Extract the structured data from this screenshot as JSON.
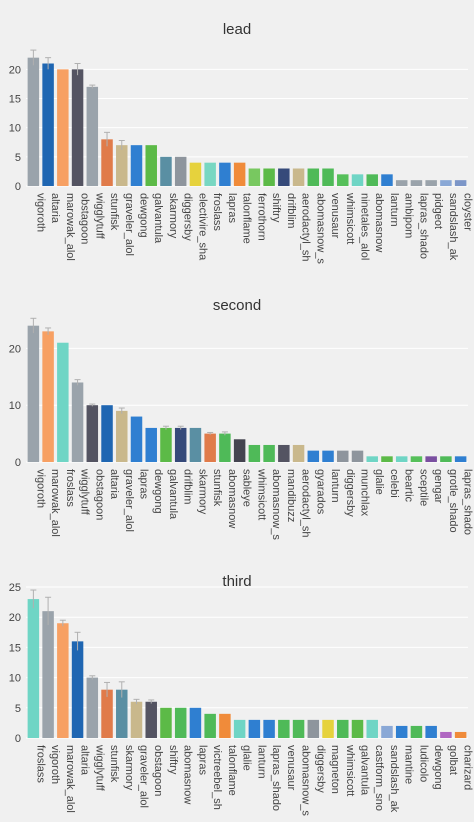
{
  "colors": {
    "background": "#f0f0f0",
    "gridline": "#ffffff",
    "errorbar": "#b0b0b0"
  },
  "chart_data": [
    {
      "type": "bar",
      "title": "lead",
      "ylim": [
        0,
        24
      ],
      "yticks": [
        0,
        5,
        10,
        15,
        20
      ],
      "grid": true,
      "categories": [
        "vigoroth",
        "altaria",
        "marowak_alol",
        "obstagoon",
        "wigglytuff",
        "stunfisk",
        "graveler_alol",
        "dewgong",
        "galvantula",
        "skarmory",
        "diggersby",
        "electivire_sha",
        "froslass",
        "lapras",
        "talonflame",
        "ferrothorn",
        "shiftry",
        "drifblim",
        "aerodactyl_sh",
        "abomasnow_s",
        "venusaur",
        "whimsicott",
        "ninetales_alol",
        "abomasnow",
        "lanturn",
        "ambipom",
        "lapras_shado",
        "pidgeot",
        "sandslash_ak",
        "cloyster"
      ],
      "values": [
        22,
        21,
        20,
        20,
        17,
        8,
        7,
        7,
        7,
        5,
        5,
        4,
        4,
        4,
        4,
        3,
        3,
        3,
        3,
        3,
        3,
        2,
        2,
        2,
        2,
        1,
        1,
        1,
        1,
        1
      ],
      "errors": [
        1.3,
        1.0,
        0,
        1.0,
        0.3,
        1.2,
        0.8,
        0,
        0,
        0,
        0,
        0,
        0,
        0,
        0,
        0,
        0,
        0,
        0,
        0,
        0,
        0,
        0,
        0,
        0,
        0,
        0,
        0,
        0,
        0
      ],
      "colors": [
        "#9aa3ab",
        "#1f66b2",
        "#f7a063",
        "#545462",
        "#9aa3ab",
        "#e07b4a",
        "#c9b88c",
        "#2f7fd1",
        "#5cba47",
        "#5a8fa3",
        "#8e959d",
        "#e6d23d",
        "#78d7c2",
        "#2f7fd1",
        "#f08b3a",
        "#78c860",
        "#5cba47",
        "#364a7a",
        "#c9b88c",
        "#4fba58",
        "#4fba58",
        "#56c05a",
        "#6fd5c5",
        "#4fba58",
        "#2f7fd1",
        "#9aa3ab",
        "#9aa3ab",
        "#9aa3ab",
        "#8aa8d6",
        "#7c96c8"
      ]
    },
    {
      "type": "bar",
      "title": "second",
      "ylim": [
        0,
        25
      ],
      "yticks": [
        0,
        10,
        20
      ],
      "grid": true,
      "categories": [
        "vigoroth",
        "marowak_alol",
        "froslass",
        "wigglytuff",
        "obstagoon",
        "altaria",
        "graveler_alol",
        "lapras",
        "dewgong",
        "galvantula",
        "drifblim",
        "skarmory",
        "stunfisk",
        "abomasnow",
        "sableye",
        "whimsicott",
        "abomasnow_s",
        "mandibuzz",
        "aerodactyl_sh",
        "gyarados",
        "lanturn",
        "diggersby",
        "munchlax",
        "glalie",
        "celebi",
        "beartic",
        "sceptile",
        "gengar",
        "grotle_shado",
        "lapras_shado"
      ],
      "values": [
        24,
        23,
        21,
        14,
        10,
        10,
        9,
        8,
        6,
        6,
        6,
        6,
        5,
        5,
        4,
        3,
        3,
        3,
        3,
        2,
        2,
        2,
        2,
        1,
        1,
        1,
        1,
        1,
        1,
        1
      ],
      "errors": [
        1.3,
        0.6,
        0,
        0.5,
        0.2,
        0,
        0.5,
        0,
        0,
        0.3,
        0.3,
        0,
        0.2,
        0.3,
        0,
        0,
        0,
        0,
        0,
        0,
        0,
        0,
        0,
        0,
        0,
        0,
        0,
        0,
        0,
        0
      ],
      "colors": [
        "#9aa3ab",
        "#f7a063",
        "#6fd5c5",
        "#9aa3ab",
        "#545462",
        "#1f66b2",
        "#c9b88c",
        "#2f7fd1",
        "#2f7fd1",
        "#5cba47",
        "#364a7a",
        "#5a8fa3",
        "#e07b4a",
        "#4fba58",
        "#444450",
        "#4fba58",
        "#4fba58",
        "#545462",
        "#c9b88c",
        "#2f7fd1",
        "#2f7fd1",
        "#8e959d",
        "#8e959d",
        "#6fd5c5",
        "#5cba47",
        "#6fd5c5",
        "#56c05a",
        "#7a4fa0",
        "#4fba58",
        "#2f7fd1"
      ]
    },
    {
      "type": "bar",
      "title": "third",
      "ylim": [
        0,
        25
      ],
      "yticks": [
        0,
        5,
        10,
        15,
        20,
        25
      ],
      "grid": true,
      "categories": [
        "froslass",
        "vigoroth",
        "marowak_alol",
        "altaria",
        "wigglytuff",
        "stunfisk",
        "skarmory",
        "graveler_alol",
        "obstagoon",
        "shiftry",
        "abomasnow",
        "lapras",
        "victreebel_sh",
        "talonflame",
        "glalie",
        "lanturn",
        "lapras_shado",
        "venusaur",
        "abomasnow_s",
        "diggersby",
        "magneton",
        "whimsicott",
        "galvantula",
        "castform_sno",
        "sandslash_ak",
        "mantine",
        "ludicolo",
        "dewgong",
        "golbat",
        "charizard"
      ],
      "values": [
        23,
        21,
        19,
        16,
        10,
        8,
        8,
        6,
        6,
        5,
        5,
        5,
        4,
        4,
        3,
        3,
        3,
        3,
        3,
        3,
        3,
        3,
        3,
        3,
        2,
        2,
        2,
        2,
        1,
        1
      ],
      "errors": [
        1.5,
        2.3,
        0.5,
        1.5,
        0.3,
        1.2,
        1.3,
        0.4,
        0.3,
        0,
        0,
        0,
        0,
        0,
        0,
        0,
        0,
        0,
        0,
        0,
        0,
        0,
        0,
        0,
        0,
        0,
        0,
        0,
        0,
        0
      ],
      "colors": [
        "#6fd5c5",
        "#9aa3ab",
        "#f7a063",
        "#1f66b2",
        "#9aa3ab",
        "#e07b4a",
        "#5a8fa3",
        "#c9b88c",
        "#545462",
        "#5cba47",
        "#4fba58",
        "#2f7fd1",
        "#4fba58",
        "#f08b3a",
        "#6fd5c5",
        "#2f7fd1",
        "#2f7fd1",
        "#4fba58",
        "#4fba58",
        "#8e959d",
        "#e6d23d",
        "#4fba58",
        "#5cba47",
        "#6fd5c5",
        "#8aa8d6",
        "#2f7fd1",
        "#4fba58",
        "#2f7fd1",
        "#b067c2",
        "#f08b3a"
      ]
    }
  ]
}
